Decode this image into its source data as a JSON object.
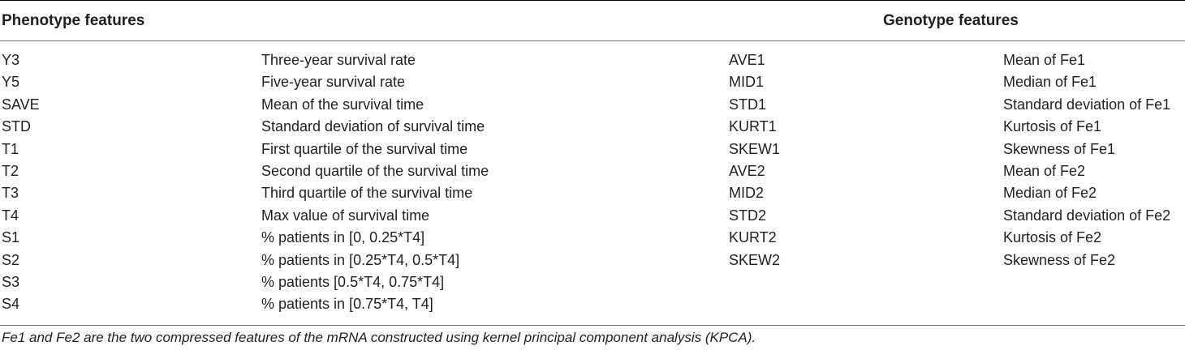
{
  "table": {
    "header": {
      "phenotype": "Phenotype features",
      "genotype": "Genotype features"
    },
    "rows": [
      {
        "pcode": "Y3",
        "pdesc": "Three-year survival rate",
        "gcode": "AVE1",
        "gdesc": "Mean of Fe1"
      },
      {
        "pcode": "Y5",
        "pdesc": "Five-year survival rate",
        "gcode": "MID1",
        "gdesc": "Median of Fe1"
      },
      {
        "pcode": "SAVE",
        "pdesc": "Mean of the survival time",
        "gcode": "STD1",
        "gdesc": "Standard deviation of Fe1"
      },
      {
        "pcode": "STD",
        "pdesc": "Standard deviation of survival time",
        "gcode": "KURT1",
        "gdesc": "Kurtosis of Fe1"
      },
      {
        "pcode": "T1",
        "pdesc": "First quartile of the survival time",
        "gcode": "SKEW1",
        "gdesc": "Skewness of Fe1"
      },
      {
        "pcode": "T2",
        "pdesc": "Second quartile of the survival time",
        "gcode": "AVE2",
        "gdesc": "Mean of Fe2"
      },
      {
        "pcode": "T3",
        "pdesc": "Third quartile of the survival time",
        "gcode": "MID2",
        "gdesc": "Median of Fe2"
      },
      {
        "pcode": "T4",
        "pdesc": "Max value of survival time",
        "gcode": "STD2",
        "gdesc": "Standard deviation of Fe2"
      },
      {
        "pcode": "S1",
        "pdesc": "% patients in [0, 0.25*T4]",
        "gcode": "KURT2",
        "gdesc": "Kurtosis of Fe2"
      },
      {
        "pcode": "S2",
        "pdesc": "% patients in [0.25*T4, 0.5*T4]",
        "gcode": "SKEW2",
        "gdesc": "Skewness of Fe2"
      },
      {
        "pcode": "S3",
        "pdesc": "% patients [0.5*T4, 0.75*T4]",
        "gcode": "",
        "gdesc": ""
      },
      {
        "pcode": "S4",
        "pdesc": "% patients in [0.75*T4, T4]",
        "gcode": "",
        "gdesc": ""
      }
    ],
    "footnote": "Fe1 and Fe2 are the two compressed features of the mRNA constructed using kernel principal component analysis (KPCA)."
  }
}
